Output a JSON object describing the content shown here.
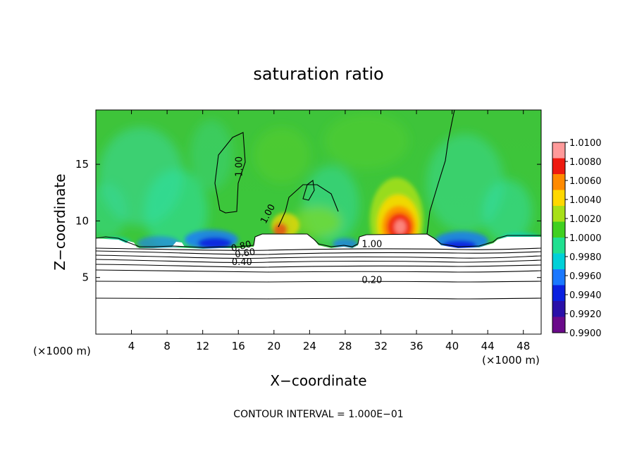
{
  "chart_data": {
    "type": "heatmap",
    "title": "saturation ratio",
    "xlabel": "X−coordinate",
    "ylabel": "Z−coordinate",
    "x_unit_left": "(×1000 m)",
    "x_unit_right": "(×1000 m)",
    "xlim": [
      0,
      50
    ],
    "ylim": [
      0,
      19.8
    ],
    "x_ticks": [
      {
        "v": 4,
        "label": "4"
      },
      {
        "v": 8,
        "label": "8"
      },
      {
        "v": 12,
        "label": "12"
      },
      {
        "v": 16,
        "label": "16"
      },
      {
        "v": 20,
        "label": "20"
      },
      {
        "v": 24,
        "label": "24"
      },
      {
        "v": 28,
        "label": "28"
      },
      {
        "v": 32,
        "label": "32"
      },
      {
        "v": 36,
        "label": "36"
      },
      {
        "v": 40,
        "label": "40"
      },
      {
        "v": 44,
        "label": "44"
      },
      {
        "v": 48,
        "label": "48"
      }
    ],
    "y_ticks": [
      {
        "v": 5,
        "label": "5"
      },
      {
        "v": 10,
        "label": "10"
      },
      {
        "v": 15,
        "label": "15"
      }
    ],
    "colorbar": {
      "min": 0.99,
      "max": 1.01,
      "levels": [
        0.99,
        0.992,
        0.994,
        0.996,
        0.998,
        1.0,
        1.002,
        1.004,
        1.006,
        1.008,
        1.01
      ],
      "labels": [
        "0.9900",
        "0.9920",
        "0.9940",
        "0.9960",
        "0.9980",
        "1.0000",
        "1.0020",
        "1.0040",
        "1.0060",
        "1.0080",
        "1.0100"
      ],
      "colors": [
        "#6a0a8a",
        "#2a10a8",
        "#0a20e0",
        "#1a78ff",
        "#00d0d8",
        "#20e090",
        "#40d020",
        "#a8e018",
        "#ffd800",
        "#ff8a00",
        "#ee1a10",
        "#ff9a9a"
      ]
    },
    "contour_labels": [
      {
        "text": "1.00",
        "x": 16.4,
        "y": 14.8,
        "rotate": -90
      },
      {
        "text": "1.00",
        "x": 19.6,
        "y": 10.5,
        "rotate": -62
      },
      {
        "text": "1.00",
        "x": 31.0,
        "y": 7.7,
        "rotate": 0
      },
      {
        "text": "0.80",
        "x": 16.4,
        "y": 7.5,
        "rotate": -14
      },
      {
        "text": "0.60",
        "x": 16.8,
        "y": 6.9,
        "rotate": -8
      },
      {
        "text": "0.40",
        "x": 16.4,
        "y": 6.1,
        "rotate": 0
      },
      {
        "text": "0.20",
        "x": 31.0,
        "y": 4.5,
        "rotate": 0
      }
    ],
    "contour_interval": "CONTOUR INTERVAL = 1.000E−01"
  },
  "colors": {
    "frame": "#000000",
    "background": "#ffffff",
    "contour": "#000000"
  }
}
